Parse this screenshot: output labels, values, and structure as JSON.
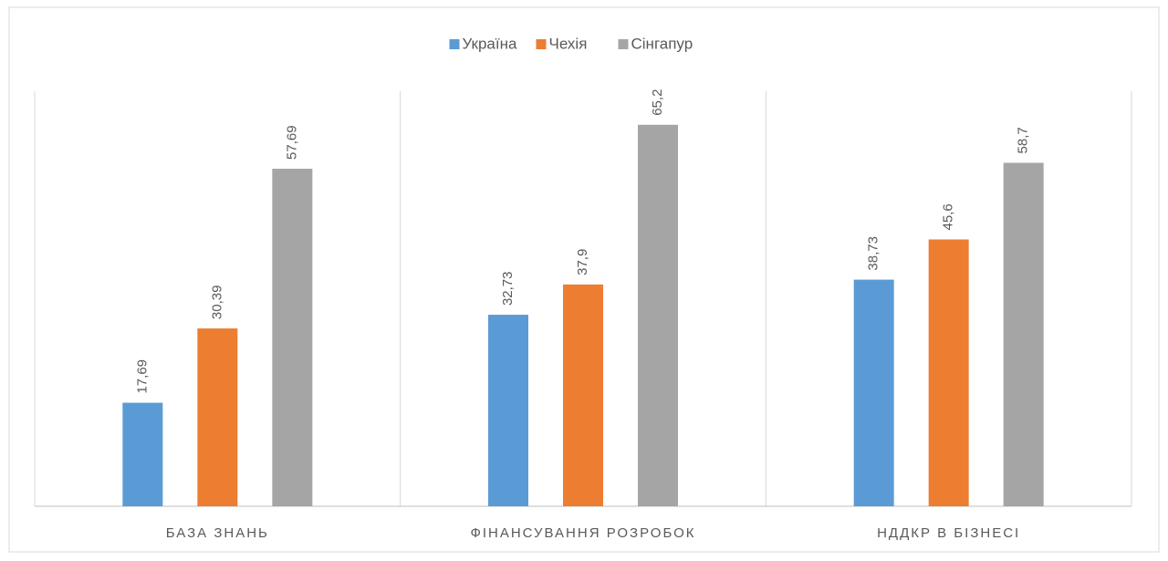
{
  "chart_data": {
    "type": "bar",
    "categories": [
      "БАЗА ЗНАНЬ",
      "ФІНАНСУВАННЯ РОЗРОБОК",
      "НДДКР В БІЗНЕСІ"
    ],
    "series": [
      {
        "name": "Україна",
        "color": "#5b9bd5",
        "values": [
          17.69,
          32.73,
          38.73
        ],
        "value_labels": [
          "17,69",
          "32,73",
          "38,73"
        ]
      },
      {
        "name": "Чехія",
        "color": "#ed7d31",
        "values": [
          30.39,
          37.9,
          45.6
        ],
        "value_labels": [
          "30,39",
          "37,9",
          "45,6"
        ]
      },
      {
        "name": "Сінгапур",
        "color": "#a5a5a5",
        "values": [
          57.69,
          65.2,
          58.7
        ],
        "value_labels": [
          "57,69",
          "65,2",
          "58,7"
        ]
      }
    ],
    "ylim": [
      0,
      70
    ],
    "legend": "top"
  }
}
